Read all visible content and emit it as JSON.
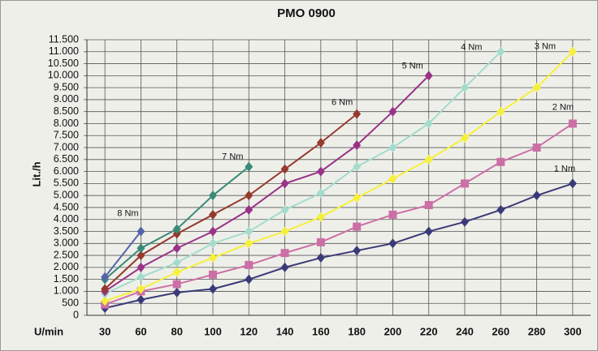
{
  "chart_data": {
    "type": "line",
    "title": "PMO 0900",
    "x_label": "U/min",
    "y_label": "Lit./h",
    "categories": [
      "30",
      "60",
      "80",
      "100",
      "120",
      "140",
      "160",
      "180",
      "200",
      "220",
      "240",
      "260",
      "280",
      "300"
    ],
    "ylim": [
      0,
      11500
    ],
    "yticks": [
      0,
      500,
      {
        "value": 1000,
        "label": "1.000"
      },
      {
        "value": 1500,
        "label": "1.500"
      },
      {
        "value": 2000,
        "label": "2.000"
      },
      {
        "value": 2500,
        "label": "2.500"
      },
      {
        "value": 3000,
        "label": "3.000"
      },
      {
        "value": 3500,
        "label": "3.500"
      },
      {
        "value": 4000,
        "label": "4.000"
      },
      {
        "value": 4500,
        "label": "4.500"
      },
      {
        "value": 5000,
        "label": "5.000"
      },
      {
        "value": 5500,
        "label": "5.500"
      },
      {
        "value": 6000,
        "label": "6.000"
      },
      {
        "value": 6500,
        "label": "6.500"
      },
      {
        "value": 7000,
        "label": "7.000"
      },
      {
        "value": 7500,
        "label": "7.500"
      },
      {
        "value": 8000,
        "label": "8.000"
      },
      {
        "value": 8500,
        "label": "8.500"
      },
      {
        "value": 9000,
        "label": "9.000"
      },
      {
        "value": 9500,
        "label": "9.500"
      },
      {
        "value": 10000,
        "label": "10.000"
      },
      {
        "value": 10500,
        "label": "10.500"
      },
      {
        "value": 11000,
        "label": "11.000"
      },
      {
        "value": 11500,
        "label": "11.500"
      }
    ],
    "grid": true,
    "series": [
      {
        "name": "1 Nm",
        "color": "#3b3a78",
        "marker": "diamond",
        "values": [
          300,
          650,
          950,
          1100,
          1500,
          2000,
          2400,
          2700,
          3000,
          3500,
          3900,
          4400,
          5000,
          5500
        ]
      },
      {
        "name": "2 Nm",
        "color": "#cc6fa6",
        "marker": "square",
        "values": [
          450,
          1000,
          1300,
          1700,
          2100,
          2600,
          3050,
          3700,
          4200,
          4600,
          5500,
          6400,
          7000,
          8000
        ]
      },
      {
        "name": "3 Nm",
        "color": "#f5f03a",
        "marker": "diamond",
        "values": [
          600,
          1100,
          1800,
          2400,
          3000,
          3500,
          4100,
          4900,
          5700,
          6500,
          7400,
          8500,
          9500,
          11000
        ]
      },
      {
        "name": "4 Nm",
        "color": "#a3dccc",
        "marker": "diamond",
        "values": [
          900,
          1600,
          2200,
          3000,
          3500,
          4400,
          5100,
          6200,
          7000,
          8000,
          9500,
          11000,
          null,
          null
        ]
      },
      {
        "name": "5 Nm",
        "color": "#993388",
        "marker": "diamond",
        "values": [
          1000,
          2000,
          2800,
          3500,
          4400,
          5500,
          6000,
          7100,
          8500,
          10000,
          null,
          null,
          null,
          null
        ]
      },
      {
        "name": "6 Nm",
        "color": "#953a2e",
        "marker": "diamond",
        "values": [
          1100,
          2500,
          3400,
          4200,
          5000,
          6100,
          7200,
          8400,
          null,
          null,
          null,
          null,
          null,
          null
        ]
      },
      {
        "name": "7 Nm",
        "color": "#3a8a78",
        "marker": "diamond",
        "values": [
          1500,
          2800,
          3600,
          5000,
          6200,
          null,
          null,
          null,
          null,
          null,
          null,
          null,
          null,
          null
        ]
      },
      {
        "name": "8 Nm",
        "color": "#5464a8",
        "marker": "diamond",
        "values": [
          1600,
          3500,
          null,
          null,
          null,
          null,
          null,
          null,
          null,
          null,
          null,
          null,
          null,
          null
        ]
      }
    ]
  }
}
